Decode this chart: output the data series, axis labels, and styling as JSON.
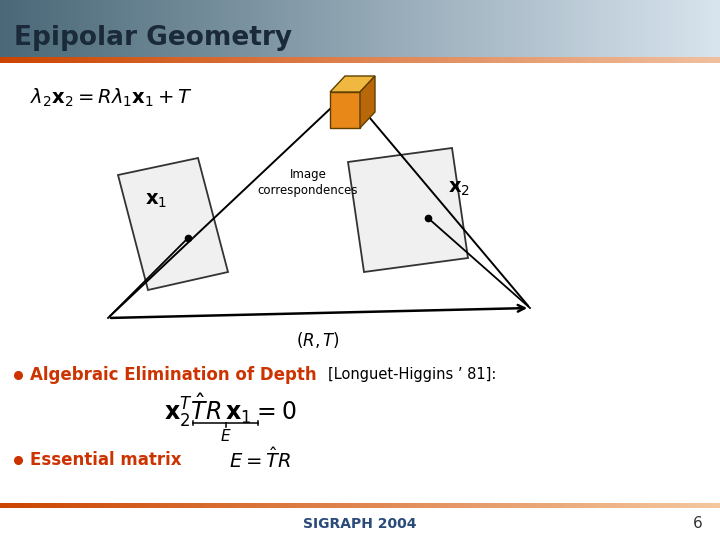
{
  "title": "Epipolar Geometry",
  "title_color": "#1a2a3a",
  "bg_color": "#ffffff",
  "slide_number": "6",
  "footer_text": "SIGRAPH 2004",
  "footer_color": "#2a4a7a",
  "bullet_color": "#cc3300",
  "bullet1_text": "Algebraic Elimination of Depth",
  "bullet2_text": "Essential matrix",
  "longuet_text": "[Longuet-Higgins ’ 81]:",
  "image_corr_text": "Image\ncorrespondences",
  "rt_label": "$(R,T)$",
  "cube_color_front": "#e88818",
  "cube_color_top": "#f0b840",
  "cube_color_side": "#b86808",
  "title_grad_left": "#4a6878",
  "title_grad_right": "#d8e4ee",
  "accent_color_left": "#cc4400",
  "accent_color_right": "#f0c0a0",
  "bottom_accent_left": "#cc4400",
  "bottom_accent_right": "#f4c8a0",
  "cam_color": "#111111",
  "plane_edge": "#333333",
  "plane_face": "#f0f0f0"
}
